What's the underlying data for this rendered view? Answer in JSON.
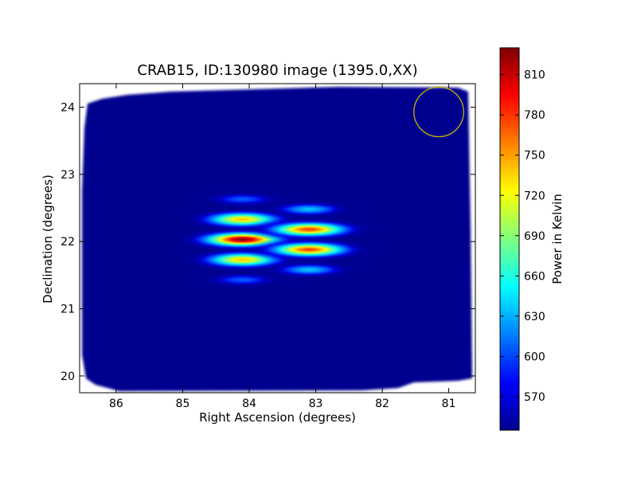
{
  "chart_data": {
    "type": "heatmap",
    "title": "CRAB15, ID:130980 image (1395.0,XX)",
    "xlabel": "Right Ascension (degrees)",
    "ylabel": "Declination (degrees)",
    "xlim": [
      86.55,
      80.6
    ],
    "ylim": [
      19.75,
      24.35
    ],
    "xticks": [
      86,
      85,
      84,
      83,
      82,
      81
    ],
    "yticks": [
      20,
      21,
      22,
      23,
      24
    ],
    "colormap": "jet",
    "colorbar": {
      "label": "Power in Kelvin",
      "range": [
        545,
        830
      ],
      "ticks": [
        570,
        600,
        630,
        660,
        690,
        720,
        750,
        780,
        810
      ]
    },
    "background_level": 555,
    "sources": [
      {
        "ra": 84.1,
        "dec": 22.03,
        "peak": 828,
        "sx": 0.33,
        "sy": 0.06
      },
      {
        "ra": 84.1,
        "dec": 22.33,
        "peak": 738,
        "sx": 0.31,
        "sy": 0.06
      },
      {
        "ra": 84.1,
        "dec": 21.73,
        "peak": 738,
        "sx": 0.31,
        "sy": 0.06
      },
      {
        "ra": 84.1,
        "dec": 22.63,
        "peak": 605,
        "sx": 0.27,
        "sy": 0.05
      },
      {
        "ra": 84.1,
        "dec": 21.43,
        "peak": 605,
        "sx": 0.27,
        "sy": 0.05
      },
      {
        "ra": 83.1,
        "dec": 22.18,
        "peak": 775,
        "sx": 0.33,
        "sy": 0.06
      },
      {
        "ra": 83.1,
        "dec": 21.88,
        "peak": 775,
        "sx": 0.33,
        "sy": 0.06
      },
      {
        "ra": 83.1,
        "dec": 22.48,
        "peak": 635,
        "sx": 0.27,
        "sy": 0.05
      },
      {
        "ra": 83.1,
        "dec": 21.58,
        "peak": 635,
        "sx": 0.27,
        "sy": 0.05
      }
    ],
    "beam_marker": {
      "ra": 81.15,
      "dec": 23.93,
      "radius_deg": 0.37,
      "color": "#c8b400"
    }
  }
}
